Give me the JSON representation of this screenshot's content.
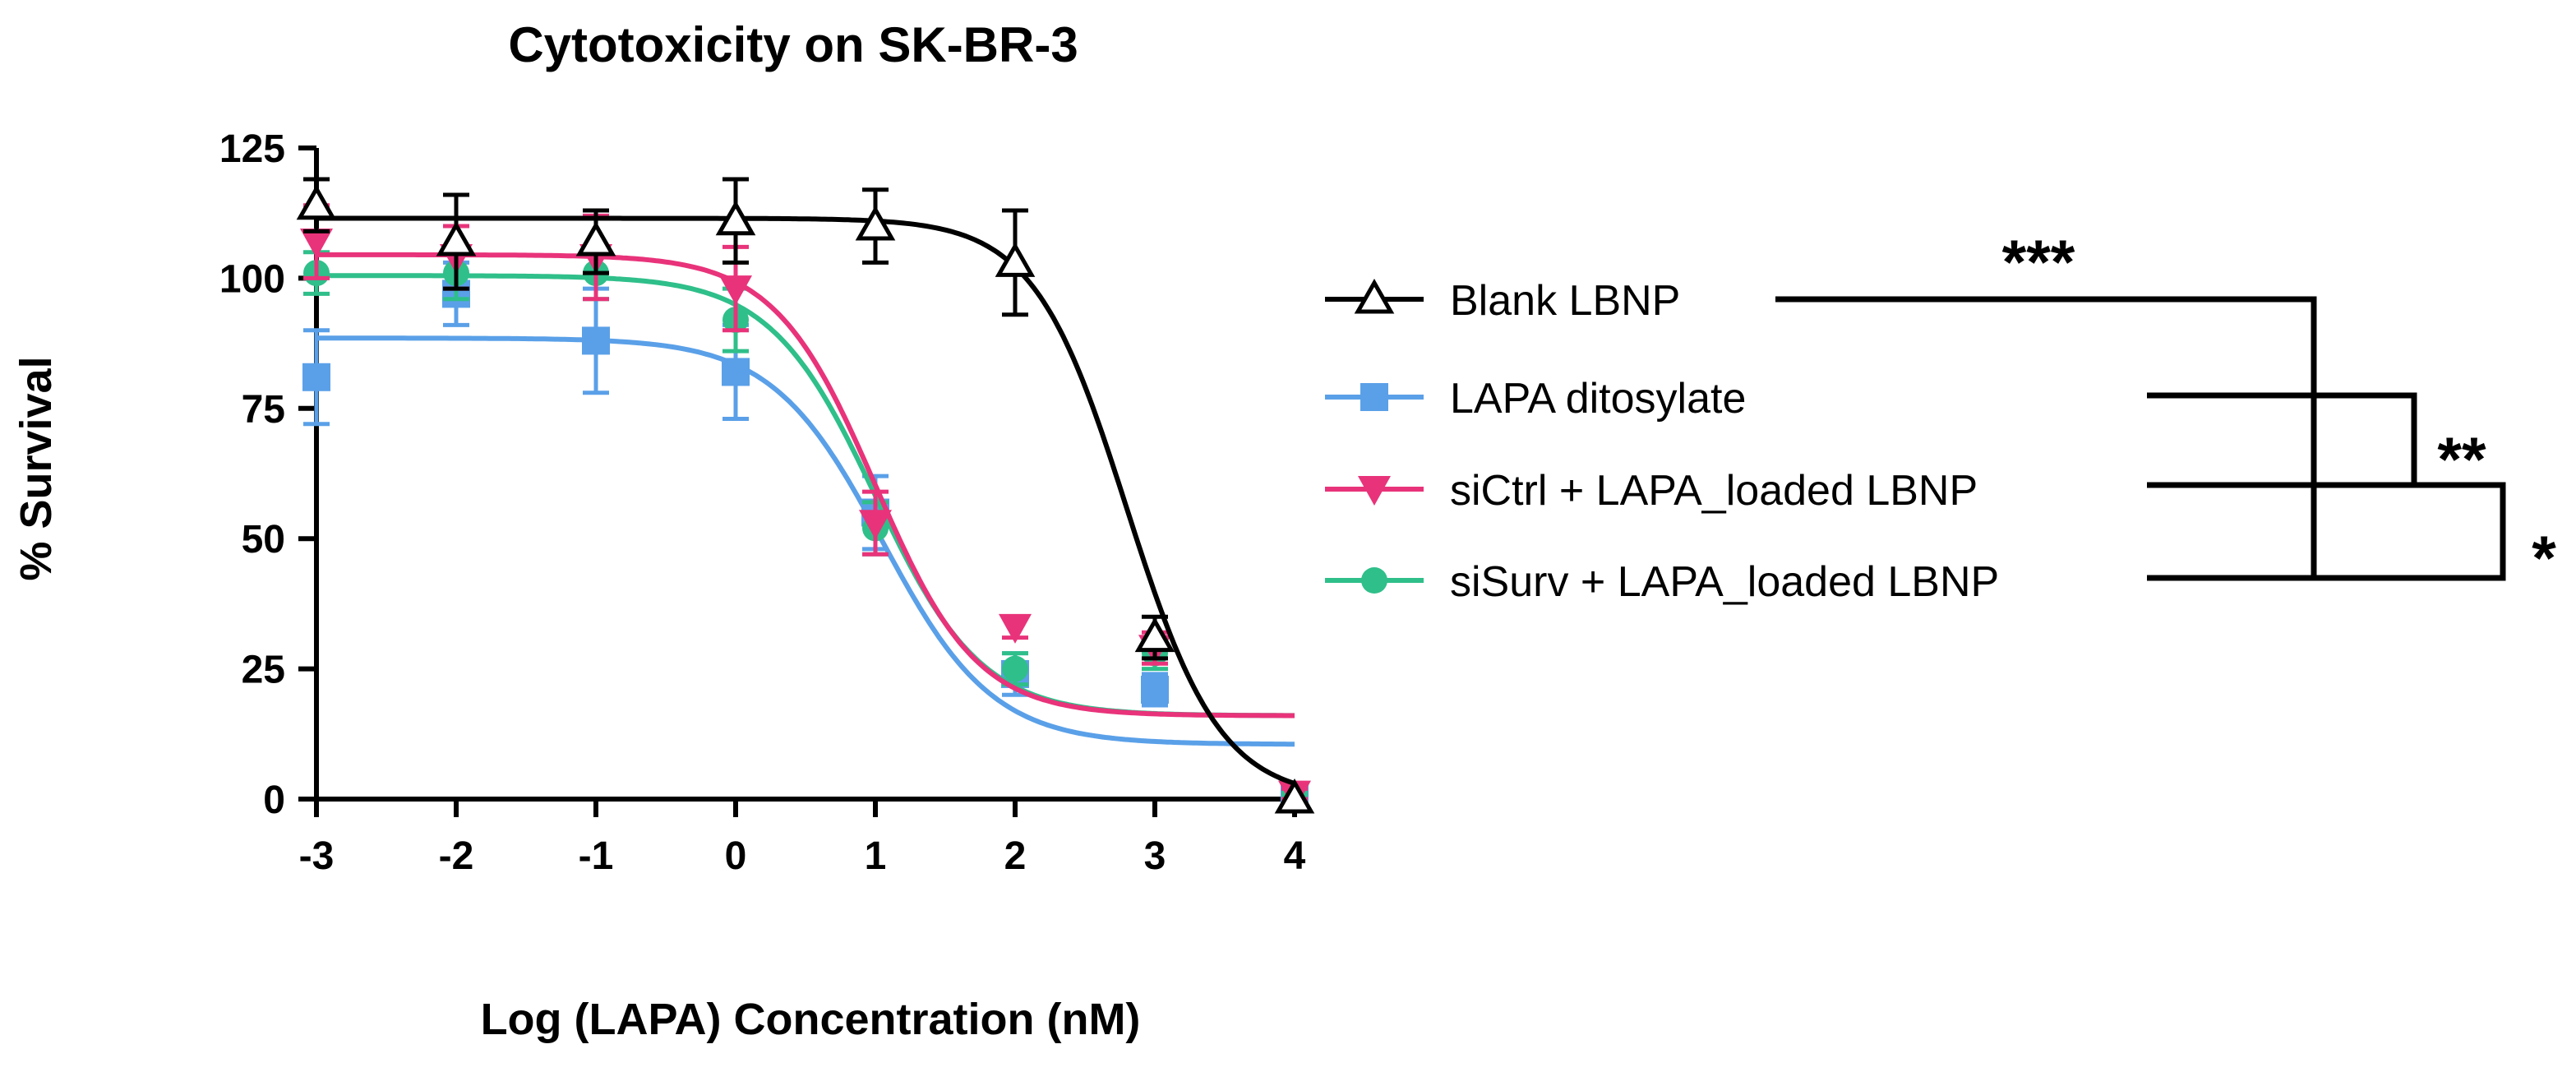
{
  "chart_data": {
    "type": "scatter",
    "title": "Cytotoxicity on SK-BR-3",
    "xlabel": "Log (LAPA) Concentration (nM)",
    "ylabel": "% Survival",
    "xlim": [
      -3,
      4
    ],
    "ylim": [
      0,
      125
    ],
    "x_ticks": [
      "-3",
      "-2",
      "-1",
      "0",
      "1",
      "2",
      "3",
      "4"
    ],
    "y_ticks": [
      "0",
      "25",
      "50",
      "75",
      "100",
      "125"
    ],
    "x_tick_values": [
      -3,
      -2,
      -1,
      0,
      1,
      2,
      3,
      4
    ],
    "y_tick_values": [
      0,
      25,
      50,
      75,
      100,
      125
    ],
    "grid": false,
    "legend_position": "right",
    "series": [
      {
        "name": "Blank LBNP",
        "color": "#000000",
        "marker": "triangle-open",
        "x": [
          -3,
          -2,
          -1,
          0,
          1,
          2,
          3,
          4
        ],
        "y": [
          114,
          107,
          107,
          111,
          110,
          103,
          31,
          0
        ],
        "err": [
          5,
          9,
          6,
          8,
          7,
          10,
          4,
          0
        ],
        "fit": {
          "top": 111.5,
          "bottom": 0,
          "logIC50": 2.8,
          "hill": 1.3
        }
      },
      {
        "name": "LAPA ditosylate",
        "color": "#5aa0e8",
        "marker": "square",
        "x": [
          -3,
          -2,
          -1,
          0,
          1,
          2,
          3,
          4
        ],
        "y": [
          81,
          97,
          88,
          82,
          55,
          24,
          21,
          0
        ],
        "err": [
          9,
          6,
          10,
          9,
          7,
          4,
          3,
          2
        ],
        "fit": {
          "top": 88.5,
          "bottom": 10.5,
          "logIC50": 1.05,
          "hill": 1.1
        }
      },
      {
        "name": "siCtrl + LAPA_loaded LBNP",
        "color": "#e8337a",
        "marker": "triangle-down",
        "x": [
          -3,
          -2,
          -1,
          0,
          1,
          2,
          3,
          4
        ],
        "y": [
          107,
          104,
          104,
          98,
          53,
          33,
          29,
          1
        ],
        "err": [
          7,
          6,
          8,
          8,
          6,
          2,
          3,
          1
        ],
        "fit": {
          "top": 104.5,
          "bottom": 16,
          "logIC50": 1.0,
          "hill": 1.2
        }
      },
      {
        "name": "siSurv + LAPA_loaded LBNP",
        "color": "#2fbf8a",
        "marker": "circle",
        "x": [
          -3,
          -2,
          -1,
          0,
          1,
          2,
          3,
          4
        ],
        "y": [
          101,
          101,
          101,
          92,
          52,
          25,
          28,
          1
        ],
        "err": [
          4,
          5,
          5,
          6,
          5,
          3,
          3,
          1
        ],
        "fit": {
          "top": 100.5,
          "bottom": 16,
          "logIC50": 1.0,
          "hill": 1.15
        }
      }
    ],
    "significance": [
      {
        "label": "***",
        "groups": [
          "Blank LBNP",
          "LAPA ditosylate + siCtrl + siSurv"
        ]
      },
      {
        "label": "**",
        "groups": [
          "LAPA ditosylate",
          "siCtrl + LAPA_loaded LBNP"
        ]
      },
      {
        "label": "*",
        "groups": [
          "siCtrl + LAPA_loaded LBNP",
          "siSurv + LAPA_loaded LBNP"
        ]
      }
    ]
  }
}
